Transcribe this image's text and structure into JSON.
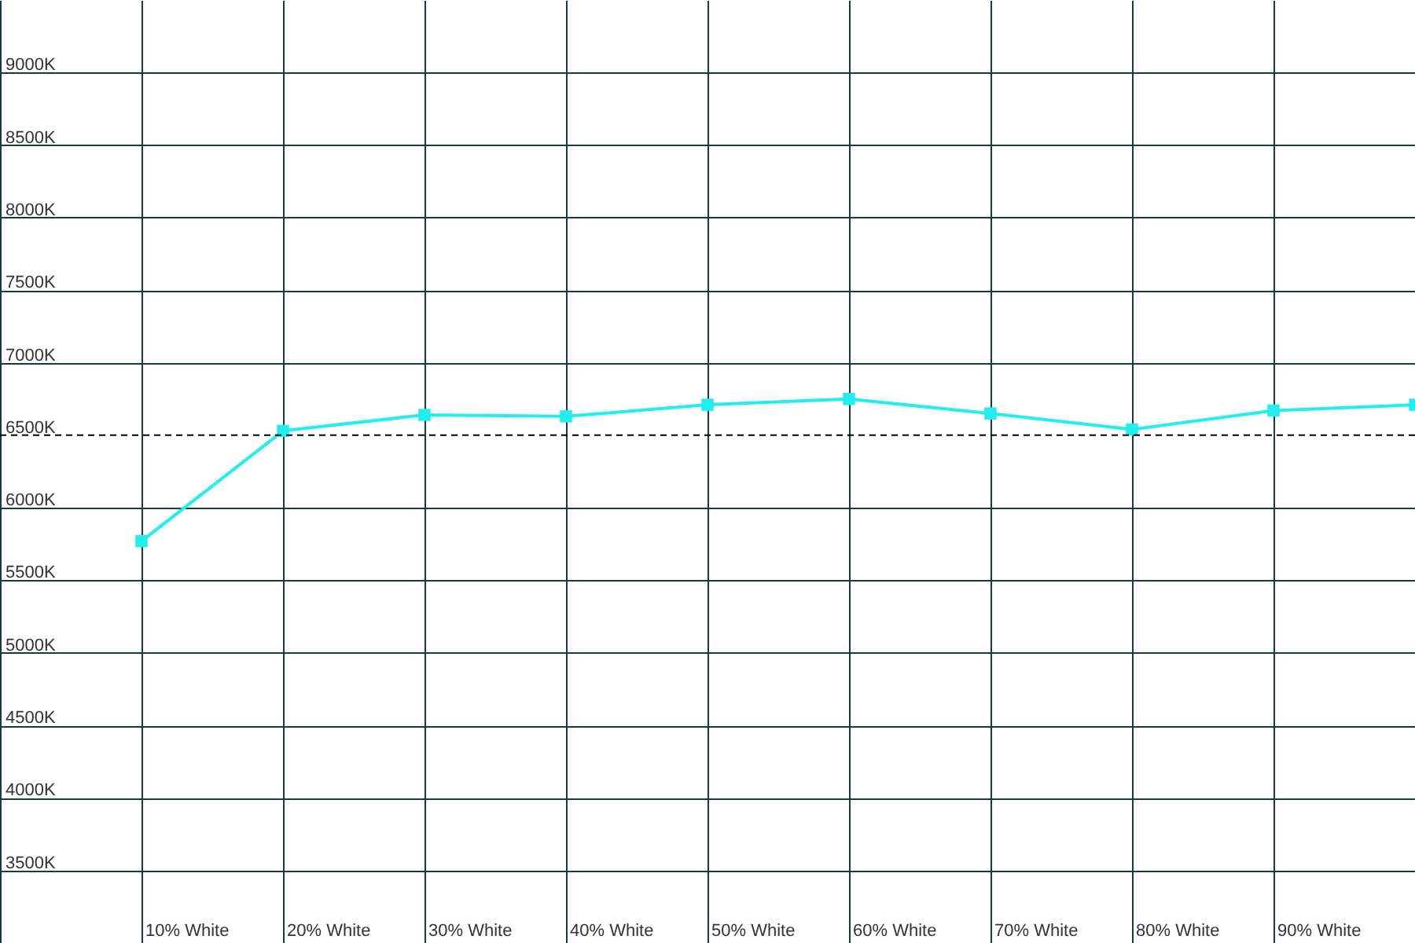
{
  "chart_data": {
    "type": "line",
    "categories": [
      "10% White",
      "20% White",
      "30% White",
      "40% White",
      "50% White",
      "60% White",
      "70% White",
      "80% White",
      "90% White",
      null
    ],
    "series": [
      {
        "color": "#22eeee",
        "values": [
          5770,
          6530,
          6640,
          6630,
          6710,
          6750,
          6650,
          6540,
          6670,
          6710
        ]
      }
    ],
    "ylim": [
      3000,
      9500
    ],
    "yticks": [
      {
        "value": 3500,
        "label": "3500K"
      },
      {
        "value": 4000,
        "label": "4000K"
      },
      {
        "value": 4500,
        "label": "4500K"
      },
      {
        "value": 5000,
        "label": "5000K"
      },
      {
        "value": 5500,
        "label": "5500K"
      },
      {
        "value": 6000,
        "label": "6000K"
      },
      {
        "value": 6500,
        "label": "6500K"
      },
      {
        "value": 7000,
        "label": "7000K"
      },
      {
        "value": 7500,
        "label": "7500K"
      },
      {
        "value": 8000,
        "label": "8000K"
      },
      {
        "value": 8500,
        "label": "8500K"
      },
      {
        "value": 9000,
        "label": "9000K"
      }
    ],
    "ref_lines": [
      {
        "axis": "y",
        "value": 6500,
        "color": "#000000",
        "line_style": "dashed"
      }
    ],
    "grid": true,
    "marker": "square",
    "line_style": "solid"
  }
}
